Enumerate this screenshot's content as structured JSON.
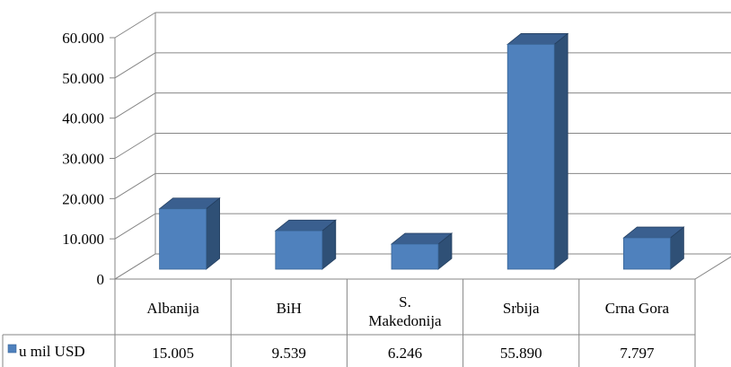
{
  "chart_data": {
    "type": "bar",
    "style": "3d-clustered-column-with-data-table",
    "categories": [
      "Albanija",
      "BiH",
      "S.\nMakedonija",
      "Srbija",
      "Crna Gora"
    ],
    "series": [
      {
        "name": "u mil USD",
        "values": [
          15005,
          9539,
          6246,
          55890,
          7797
        ],
        "value_labels": [
          "15.005",
          "9.539",
          "6.246",
          "55.890",
          "7.797"
        ]
      }
    ],
    "y_ticks": [
      "0",
      "10.000",
      "20.000",
      "30.000",
      "40.000",
      "50.000",
      "60.000"
    ],
    "ylim": [
      0,
      60000
    ],
    "grid": true,
    "legend": "data-table-left",
    "colors": {
      "bar_front": "#4f81bd",
      "bar_side": "#2f5076",
      "bar_top": "#3a5f8f",
      "grid": "#868686",
      "table_border": "#868686"
    }
  }
}
